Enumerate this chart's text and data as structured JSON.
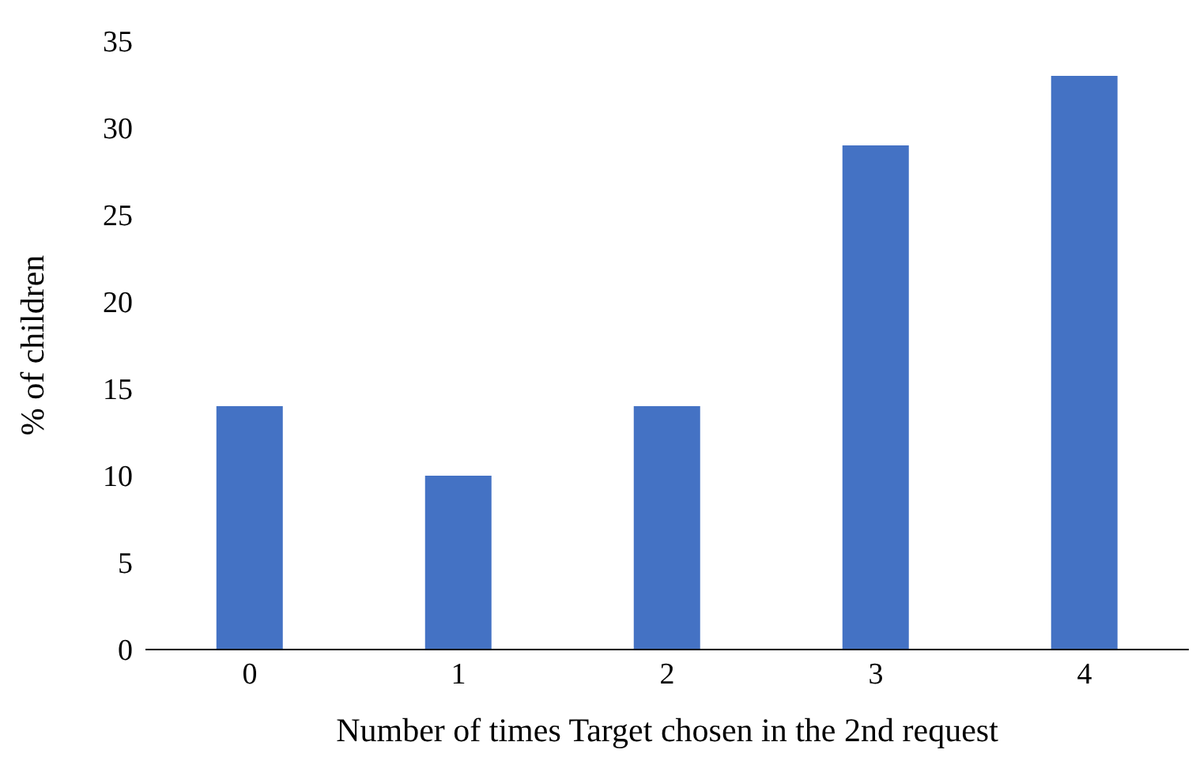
{
  "chart_data": {
    "type": "bar",
    "xlabel": "Number of times Target chosen in the 2nd request",
    "ylabel": "% of children",
    "categories": [
      "0",
      "1",
      "2",
      "3",
      "4"
    ],
    "values": [
      14,
      10,
      14,
      29,
      33
    ],
    "color": "#4472c4",
    "ylim": [
      0,
      35
    ],
    "yticks": [
      0,
      5,
      10,
      15,
      20,
      25,
      30,
      35
    ],
    "grid": false,
    "legend": false
  }
}
